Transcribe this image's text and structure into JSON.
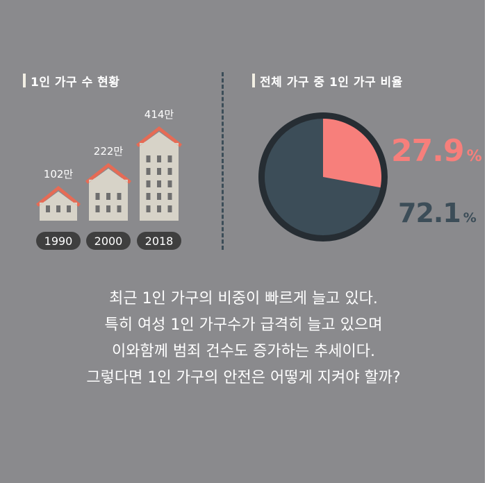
{
  "left_section": {
    "title": "1인 가구 수 현황"
  },
  "right_section": {
    "title": "전체 가구 중 1인 가구 비율"
  },
  "pie": {
    "slice_large_label": "72.1",
    "slice_small_label": "27.9",
    "percent_sign": "%"
  },
  "caption": {
    "lines": [
      "최근 1인 가구의 비중이 빠르게 늘고 있다.",
      "특히 여성 1인 가구수가 급격히 늘고 있으며",
      "이와함께 범죄 건수도 증가하는 추세이다.",
      "그렇다면 1인 가구의 안전은 어떻게 지켜야 할까?"
    ]
  },
  "colors": {
    "background": "#8a8a8d",
    "house_body": "#d7d3c8",
    "roof": "#e66b55",
    "window": "#6f6f6f",
    "pill": "#3f3f3f",
    "pie_dark": "#3c4d58",
    "pie_rim": "#262d33",
    "pie_accent": "#f77f7b"
  },
  "chart_data": [
    {
      "type": "bar",
      "title": "1인 가구 수 현황",
      "categories": [
        "1990",
        "2000",
        "2018"
      ],
      "values": [
        102,
        222,
        414
      ],
      "value_labels": [
        "102만",
        "222만",
        "414만"
      ],
      "unit": "만"
    },
    {
      "type": "pie",
      "title": "전체 가구 중 1인 가구 비율",
      "slices": [
        {
          "label": "27.9%",
          "value": 27.9,
          "color": "#f77f7b"
        },
        {
          "label": "72.1%",
          "value": 72.1,
          "color": "#3c4d58"
        }
      ]
    }
  ]
}
